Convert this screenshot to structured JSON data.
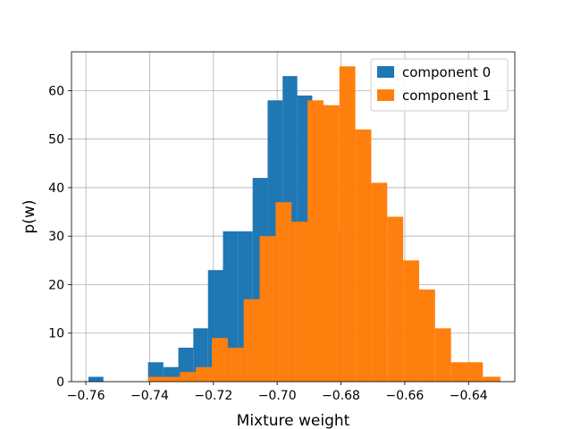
{
  "chart_data": {
    "type": "bar",
    "subtype": "histogram",
    "xlabel": "Mixture weight",
    "ylabel": "p(w)",
    "xlim": [
      -0.7645,
      -0.6255
    ],
    "ylim": [
      0,
      68
    ],
    "xticks": [
      -0.76,
      -0.74,
      -0.72,
      -0.7,
      -0.68,
      -0.66,
      -0.64
    ],
    "xtick_labels": [
      "−0.76",
      "−0.74",
      "−0.72",
      "−0.70",
      "−0.68",
      "−0.66",
      "−0.64"
    ],
    "yticks": [
      0,
      10,
      20,
      30,
      40,
      50,
      60
    ],
    "ytick_labels": [
      "0",
      "10",
      "20",
      "30",
      "40",
      "50",
      "60"
    ],
    "grid": true,
    "legend_position": "top-right",
    "series": [
      {
        "name": "component 0",
        "color": "#1f77b4",
        "bins": [
          [
            -0.7592,
            -0.7545,
            1
          ],
          [
            -0.7405,
            -0.7357,
            4
          ],
          [
            -0.7357,
            -0.731,
            3
          ],
          [
            -0.731,
            -0.7263,
            7
          ],
          [
            -0.7263,
            -0.7217,
            11
          ],
          [
            -0.7217,
            -0.717,
            23
          ],
          [
            -0.717,
            -0.7123,
            31
          ],
          [
            -0.7123,
            -0.7077,
            31
          ],
          [
            -0.7077,
            -0.703,
            42
          ],
          [
            -0.703,
            -0.6983,
            58
          ],
          [
            -0.6983,
            -0.6937,
            63
          ],
          [
            -0.6937,
            -0.689,
            59
          ],
          [
            -0.689,
            -0.6843,
            57
          ],
          [
            -0.6843,
            -0.6797,
            31
          ]
        ]
      },
      {
        "name": "component 1",
        "color": "#ff7f0e",
        "bins": [
          [
            -0.7405,
            -0.7355,
            1
          ],
          [
            -0.7355,
            -0.7305,
            1
          ],
          [
            -0.7305,
            -0.7255,
            2
          ],
          [
            -0.7255,
            -0.7205,
            3
          ],
          [
            -0.7205,
            -0.7155,
            9
          ],
          [
            -0.7155,
            -0.7105,
            7
          ],
          [
            -0.7105,
            -0.7055,
            17
          ],
          [
            -0.7055,
            -0.7005,
            30
          ],
          [
            -0.7005,
            -0.6955,
            37
          ],
          [
            -0.6955,
            -0.6905,
            33
          ],
          [
            -0.6905,
            -0.6855,
            58
          ],
          [
            -0.6855,
            -0.6805,
            57
          ],
          [
            -0.6805,
            -0.6755,
            65
          ],
          [
            -0.6755,
            -0.6705,
            52
          ],
          [
            -0.6705,
            -0.6655,
            41
          ],
          [
            -0.6655,
            -0.6605,
            34
          ],
          [
            -0.6605,
            -0.6555,
            25
          ],
          [
            -0.6555,
            -0.6505,
            19
          ],
          [
            -0.6505,
            -0.6455,
            11
          ],
          [
            -0.6455,
            -0.6405,
            4
          ],
          [
            -0.6405,
            -0.6355,
            4
          ],
          [
            -0.6355,
            -0.6305,
            1
          ],
          [
            -0.6305,
            -0.6255,
            0
          ],
          [
            -0.6345,
            -0.63,
            1
          ]
        ]
      }
    ]
  }
}
